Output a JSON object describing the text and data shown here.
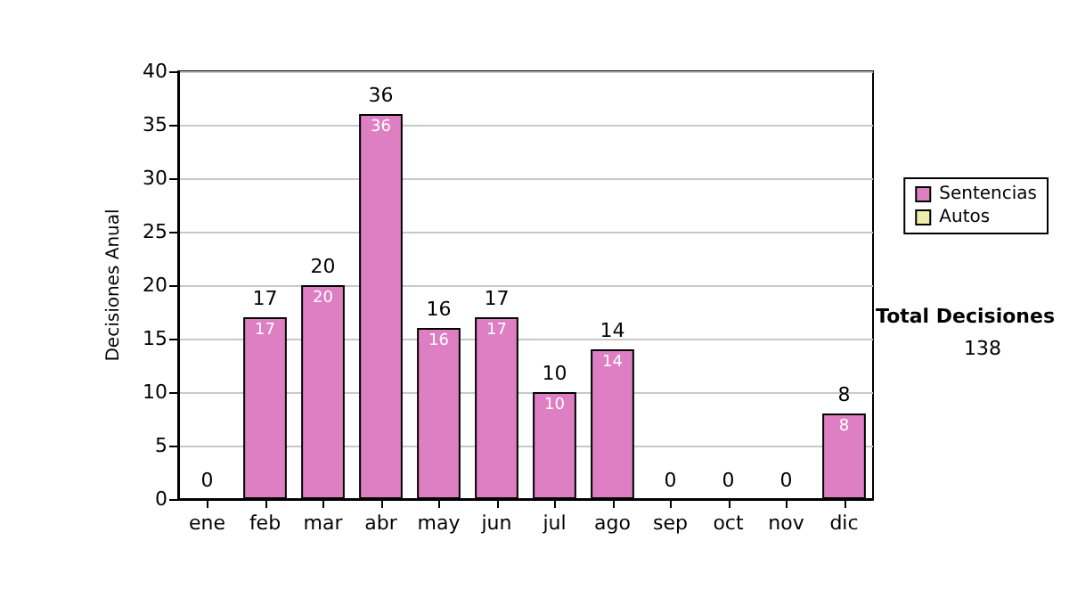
{
  "chart_data": {
    "type": "bar",
    "ylabel": "Decisiones Anual",
    "categories": [
      "ene",
      "feb",
      "mar",
      "abr",
      "may",
      "jun",
      "jul",
      "ago",
      "sep",
      "oct",
      "nov",
      "dic"
    ],
    "series": [
      {
        "name": "Sentencias",
        "color": "#dd7fc2",
        "values": [
          0,
          17,
          20,
          36,
          16,
          17,
          10,
          14,
          0,
          0,
          0,
          8
        ],
        "value_labels": [
          null,
          "17",
          "20",
          "36",
          "16",
          "17",
          "10",
          "14",
          null,
          null,
          null,
          "8"
        ]
      },
      {
        "name": "Autos",
        "color": "#eeeeaa",
        "values": [
          0,
          0,
          0,
          0,
          0,
          0,
          0,
          0,
          0,
          0,
          0,
          0
        ]
      }
    ],
    "stacked": true,
    "totals": [
      "0",
      "17",
      "20",
      "36",
      "16",
      "17",
      "10",
      "14",
      "0",
      "0",
      "0",
      "8"
    ],
    "ylim": [
      0,
      40
    ],
    "yticks": [
      0,
      5,
      10,
      15,
      20,
      25,
      30,
      35,
      40
    ],
    "grid": "y",
    "legend": "right",
    "annotations": [
      "Total Decisiones",
      "138"
    ]
  }
}
